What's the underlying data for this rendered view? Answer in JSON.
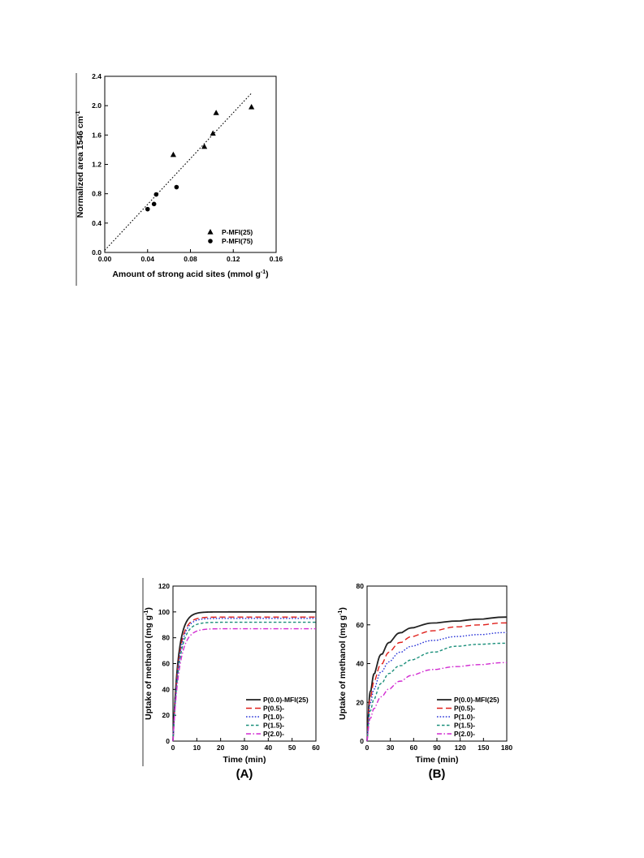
{
  "chart_data": [
    {
      "type": "scatter",
      "title": "",
      "xlabel": "Amount of strong acid sites (mmol g",
      "xlabel_sup": "-1",
      "xlabel_end": ")",
      "ylabel": "Normalized area 1546 cm",
      "ylabel_sup": "-1",
      "xlim": [
        0.0,
        0.16
      ],
      "ylim": [
        0.0,
        2.4
      ],
      "xticks": [
        "0.00",
        "0.04",
        "0.08",
        "0.12",
        "0.16"
      ],
      "yticks": [
        "0.0",
        "0.4",
        "0.8",
        "1.2",
        "1.6",
        "2.0",
        "2.4"
      ],
      "legend_position": "bottom-right",
      "series": [
        {
          "name": "P-MFI(25)",
          "marker": "triangle",
          "x": [
            0.064,
            0.093,
            0.101,
            0.104,
            0.137
          ],
          "y": [
            1.33,
            1.44,
            1.62,
            1.9,
            1.98
          ]
        },
        {
          "name": "P-MFI(75)",
          "marker": "circle",
          "x": [
            0.04,
            0.046,
            0.048,
            0.067
          ],
          "y": [
            0.59,
            0.66,
            0.79,
            0.89
          ]
        }
      ],
      "fit_line": {
        "style": "dotted",
        "x": [
          0.0,
          0.137
        ],
        "y": [
          0.03,
          2.17
        ]
      }
    },
    {
      "type": "line",
      "panel_label": "(A)",
      "xlabel": "Time (min)",
      "ylabel": "Uptake of methanol (mg g",
      "ylabel_sup": "-1",
      "ylabel_end": ")",
      "xlim": [
        0,
        60
      ],
      "ylim": [
        0,
        120
      ],
      "xticks": [
        "0",
        "10",
        "20",
        "30",
        "40",
        "50",
        "60"
      ],
      "yticks": [
        "0",
        "20",
        "40",
        "60",
        "80",
        "100",
        "120"
      ],
      "legend_position": "bottom-right",
      "series": [
        {
          "name": "P(0.0)-MFI(25)",
          "color": "#222222",
          "dash": "solid",
          "plateau": 100,
          "tau": 2.2
        },
        {
          "name": "P(0.5)-",
          "color": "#e0201b",
          "dash": "dashed",
          "plateau": 96,
          "tau": 2.3
        },
        {
          "name": "P(1.0)-",
          "color": "#2a35d8",
          "dash": "dotted",
          "plateau": 95,
          "tau": 2.4
        },
        {
          "name": "P(1.5)-",
          "color": "#1a8f7a",
          "dash": "short-dashed",
          "plateau": 92,
          "tau": 2.5
        },
        {
          "name": "P(2.0)-",
          "color": "#d12bd1",
          "dash": "dash-dot",
          "plateau": 87,
          "tau": 2.6
        }
      ]
    },
    {
      "type": "line",
      "panel_label": "(B)",
      "xlabel": "Time (min)",
      "ylabel": "Uptake of methanol (mg g",
      "ylabel_sup": "-1",
      "ylabel_end": ")",
      "xlim": [
        0,
        180
      ],
      "ylim": [
        0,
        80
      ],
      "xticks": [
        "0",
        "30",
        "60",
        "90",
        "120",
        "150",
        "180"
      ],
      "yticks": [
        "0",
        "20",
        "40",
        "60",
        "80"
      ],
      "legend_position": "bottom-right",
      "series": [
        {
          "name": "P(0.0)-MFI(25)",
          "color": "#222222",
          "dash": "solid",
          "x": [
            0,
            5,
            10,
            20,
            30,
            45,
            60,
            90,
            120,
            150,
            180
          ],
          "y": [
            0,
            26,
            35,
            45,
            51,
            56,
            58.5,
            61,
            62,
            63,
            64
          ]
        },
        {
          "name": "P(0.5)-",
          "color": "#e0201b",
          "dash": "dashed",
          "x": [
            0,
            5,
            10,
            20,
            30,
            45,
            60,
            90,
            120,
            150,
            180
          ],
          "y": [
            0,
            23,
            31,
            40,
            46,
            51,
            54,
            57,
            59,
            60,
            61
          ]
        },
        {
          "name": "P(1.0)-",
          "color": "#2a35d8",
          "dash": "dotted",
          "x": [
            0,
            5,
            10,
            20,
            30,
            45,
            60,
            90,
            120,
            150,
            180
          ],
          "y": [
            0,
            20,
            27,
            36,
            41,
            46,
            49,
            52,
            54,
            55,
            56
          ]
        },
        {
          "name": "P(1.5)-",
          "color": "#1a8f7a",
          "dash": "short-dashed",
          "x": [
            0,
            5,
            10,
            20,
            30,
            45,
            60,
            90,
            120,
            150,
            180
          ],
          "y": [
            0,
            16,
            22,
            30,
            35,
            39,
            42,
            46,
            49,
            50,
            50.5
          ]
        },
        {
          "name": "P(2.0)-",
          "color": "#d12bd1",
          "dash": "dash-dot",
          "x": [
            0,
            5,
            10,
            20,
            30,
            45,
            60,
            90,
            120,
            150,
            180
          ],
          "y": [
            0,
            12,
            17,
            23,
            27,
            31,
            34,
            37,
            38.5,
            39.5,
            40.5
          ]
        }
      ]
    }
  ]
}
